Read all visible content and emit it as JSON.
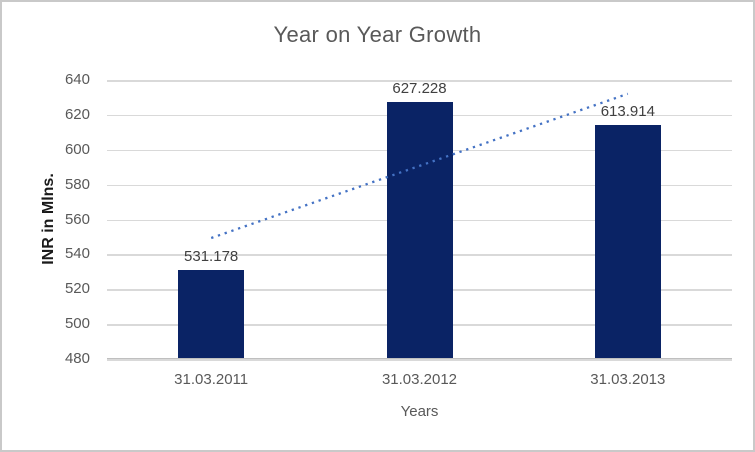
{
  "window": {
    "background": "#ffffff",
    "border_color": "#c9c9c9"
  },
  "chart_data": {
    "type": "bar",
    "title": "Year on Year Growth",
    "xlabel": "Years",
    "ylabel": "INR in Mlns.",
    "categories": [
      "31.03.2011",
      "31.03.2012",
      "31.03.2013"
    ],
    "values": [
      531.178,
      627.228,
      613.914
    ],
    "data_labels": [
      "531.178",
      "627.228",
      "613.914"
    ],
    "ylim": [
      480,
      640
    ],
    "yticks": [
      640,
      620,
      600,
      580,
      560,
      540,
      520,
      500,
      480
    ],
    "grid": "horizontal",
    "legend": "none",
    "colors": {
      "bar": "#0a2365",
      "trendline": "#4472c4",
      "gridline": "#d9d9d9",
      "axis_line": "#bfbfbf",
      "title_text": "#595959",
      "tick_text": "#595959",
      "data_label_text": "#404040",
      "axis_title_text": "#1a1a1a"
    },
    "trendline": {
      "type": "linear",
      "style": "dotted",
      "start_value": 549.4,
      "end_value": 632.1
    }
  }
}
